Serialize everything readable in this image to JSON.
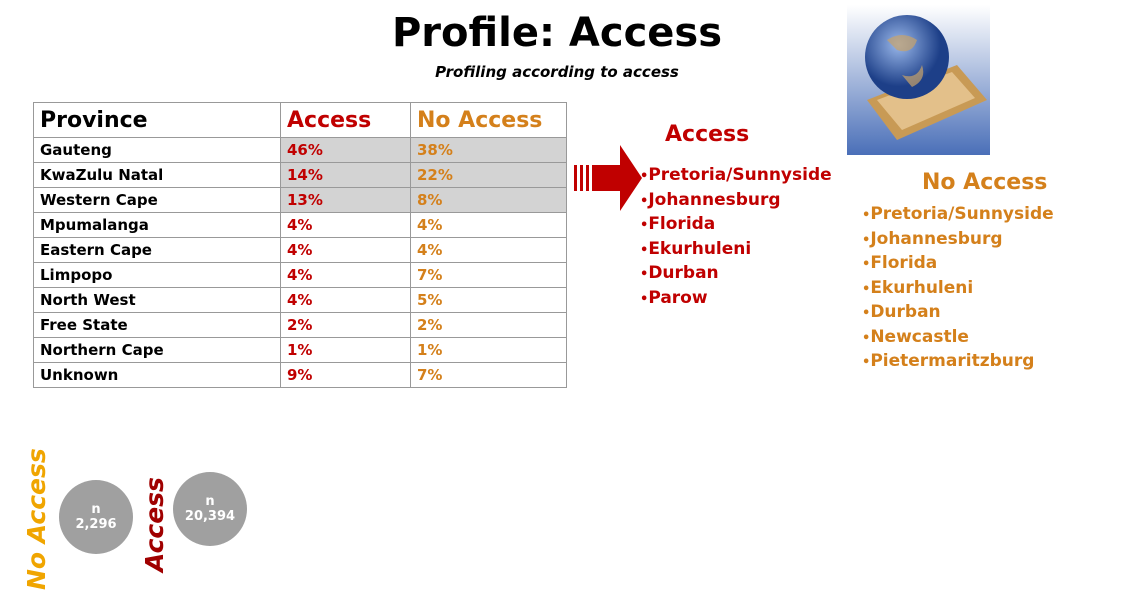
{
  "title": "Profile: Access",
  "subtitle": "Profiling according to access",
  "table": {
    "header": [
      "Province",
      "Access",
      "No Access"
    ],
    "rows": [
      [
        "Gauteng",
        "46%",
        "38%"
      ],
      [
        "KwaZulu Natal",
        "14%",
        "22%"
      ],
      [
        "Western Cape",
        "13%",
        "8%"
      ],
      [
        "Mpumalanga",
        "4%",
        "4%"
      ],
      [
        "Eastern Cape",
        "4%",
        "4%"
      ],
      [
        "Limpopo",
        "4%",
        "7%"
      ],
      [
        "North West",
        "4%",
        "5%"
      ],
      [
        "Free State",
        "2%",
        "2%"
      ],
      [
        "Northern Cape",
        "1%",
        "1%"
      ],
      [
        "Unknown",
        "9%",
        "7%"
      ]
    ]
  },
  "access_list": {
    "title": "Access",
    "items": [
      "Pretoria/Sunnyside",
      "Johannesburg",
      "Florida",
      "Ekurhuleni",
      "Durban",
      "Parow"
    ]
  },
  "no_access_list": {
    "title": "No Access",
    "items": [
      "Pretoria/Sunnyside",
      "Johannesburg",
      "Florida",
      "Ekurhuleni",
      "Durban",
      "Newcastle",
      "Pietermaritzburg"
    ]
  },
  "samples": [
    {
      "label": "No Access",
      "n_label": "n",
      "n": "2,296"
    },
    {
      "label": "Access",
      "n_label": "n",
      "n": "20,394"
    }
  ]
}
